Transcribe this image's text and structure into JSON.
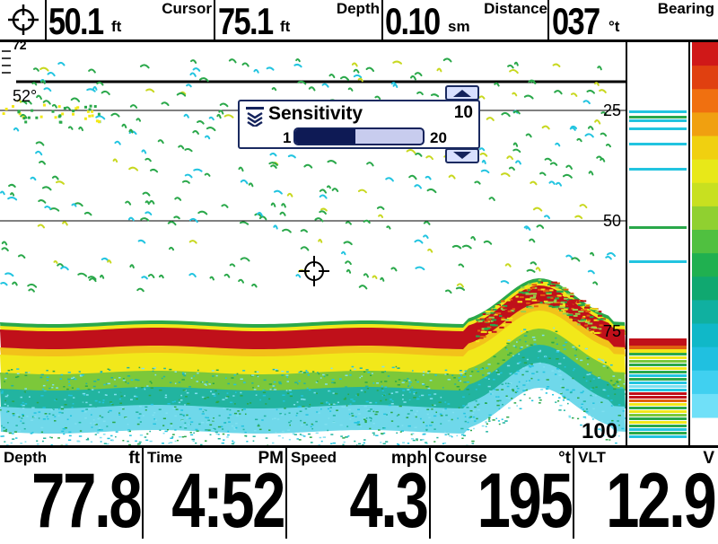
{
  "topbar": {
    "cursor_depth": {
      "value": "50.1",
      "unit": "ft",
      "label": "Cursor"
    },
    "depth": {
      "value": "75.1",
      "unit": "ft",
      "label": "Depth"
    },
    "distance": {
      "value": "0.10",
      "unit": "sm",
      "label": "Distance"
    },
    "bearing": {
      "value": "037",
      "unit": "°t",
      "label": "Bearing"
    }
  },
  "sonar": {
    "top_scale": "72",
    "temp_label": "52°",
    "depth_ticks": [
      "25",
      "50",
      "75",
      "100"
    ]
  },
  "sensitivity": {
    "title": "Sensitivity",
    "value": 10,
    "value_label": "10",
    "min": 1,
    "min_label": "1",
    "max": 20,
    "max_label": "20"
  },
  "bottombar": [
    {
      "key": "depth",
      "label": "Depth",
      "unit": "ft",
      "value": "77.8"
    },
    {
      "key": "time",
      "label": "Time",
      "unit": "PM",
      "value": "4:52"
    },
    {
      "key": "speed",
      "label": "Speed",
      "unit": "mph",
      "value": "4.3"
    },
    {
      "key": "course",
      "label": "Course",
      "unit": "°t",
      "value": "195"
    },
    {
      "key": "vlt",
      "label": "VLT",
      "unit": "V",
      "value": "12.9"
    }
  ],
  "icons": {
    "cursor": "crosshair-icon",
    "sensitivity": "sensitivity-icon",
    "up": "arrow-up-icon",
    "down": "arrow-down-icon"
  },
  "colors": {
    "bottom_red": "#c0101a",
    "bottom_yellow": "#f2e81a",
    "fish_green": "#2aa84a",
    "cyan": "#22c4e0",
    "accent_navy": "#0e1a55"
  }
}
